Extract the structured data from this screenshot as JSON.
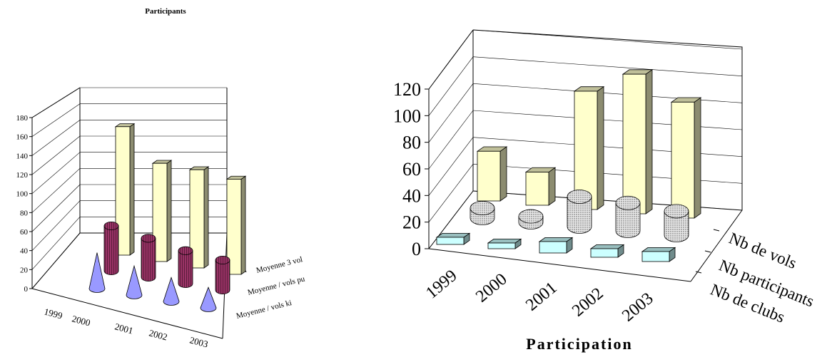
{
  "charts": [
    {
      "chart_data": {
        "type": "bar",
        "title": "Participants",
        "categories": [
          "1999",
          "2000",
          "2001",
          "2002",
          "2003"
        ],
        "ylim": [
          0,
          180
        ],
        "yticks": [
          0,
          20,
          40,
          60,
          80,
          100,
          120,
          140,
          160,
          180
        ],
        "grid": true,
        "series": [
          {
            "name": "Moyenne 3 vol",
            "shape": "box",
            "color": "#ffffcc",
            "values": [
              null,
              170,
              130,
              130,
              126
            ]
          },
          {
            "name": "Moyenne / vols pu",
            "shape": "cylinder",
            "color": "#993366",
            "values": [
              null,
              60,
              52,
              44,
              40
            ]
          },
          {
            "name": "Moyenne / vols ki",
            "shape": "cone",
            "color": "#9999ff",
            "values": [
              null,
              42,
              34,
              28,
              24
            ]
          }
        ]
      }
    },
    {
      "chart_data": {
        "type": "bar",
        "title": "Participation",
        "categories": [
          "1999",
          "2000",
          "2001",
          "2002",
          "2003"
        ],
        "ylim": [
          0,
          120
        ],
        "yticks": [
          0,
          20,
          40,
          60,
          80,
          100,
          120
        ],
        "grid": true,
        "series": [
          {
            "name": "Nb de vols",
            "shape": "box",
            "color": "#ffffcc",
            "values": [
              42,
              28,
              100,
              118,
              98
            ]
          },
          {
            "name": "Nb participants",
            "shape": "cylinder",
            "color": "#d9d9d9",
            "values": [
              10,
              6,
              30,
              28,
              24
            ]
          },
          {
            "name": "Nb de clubs",
            "shape": "box",
            "color": "#ccffff",
            "values": [
              5,
              4,
              8,
              6,
              7
            ]
          }
        ]
      }
    }
  ]
}
